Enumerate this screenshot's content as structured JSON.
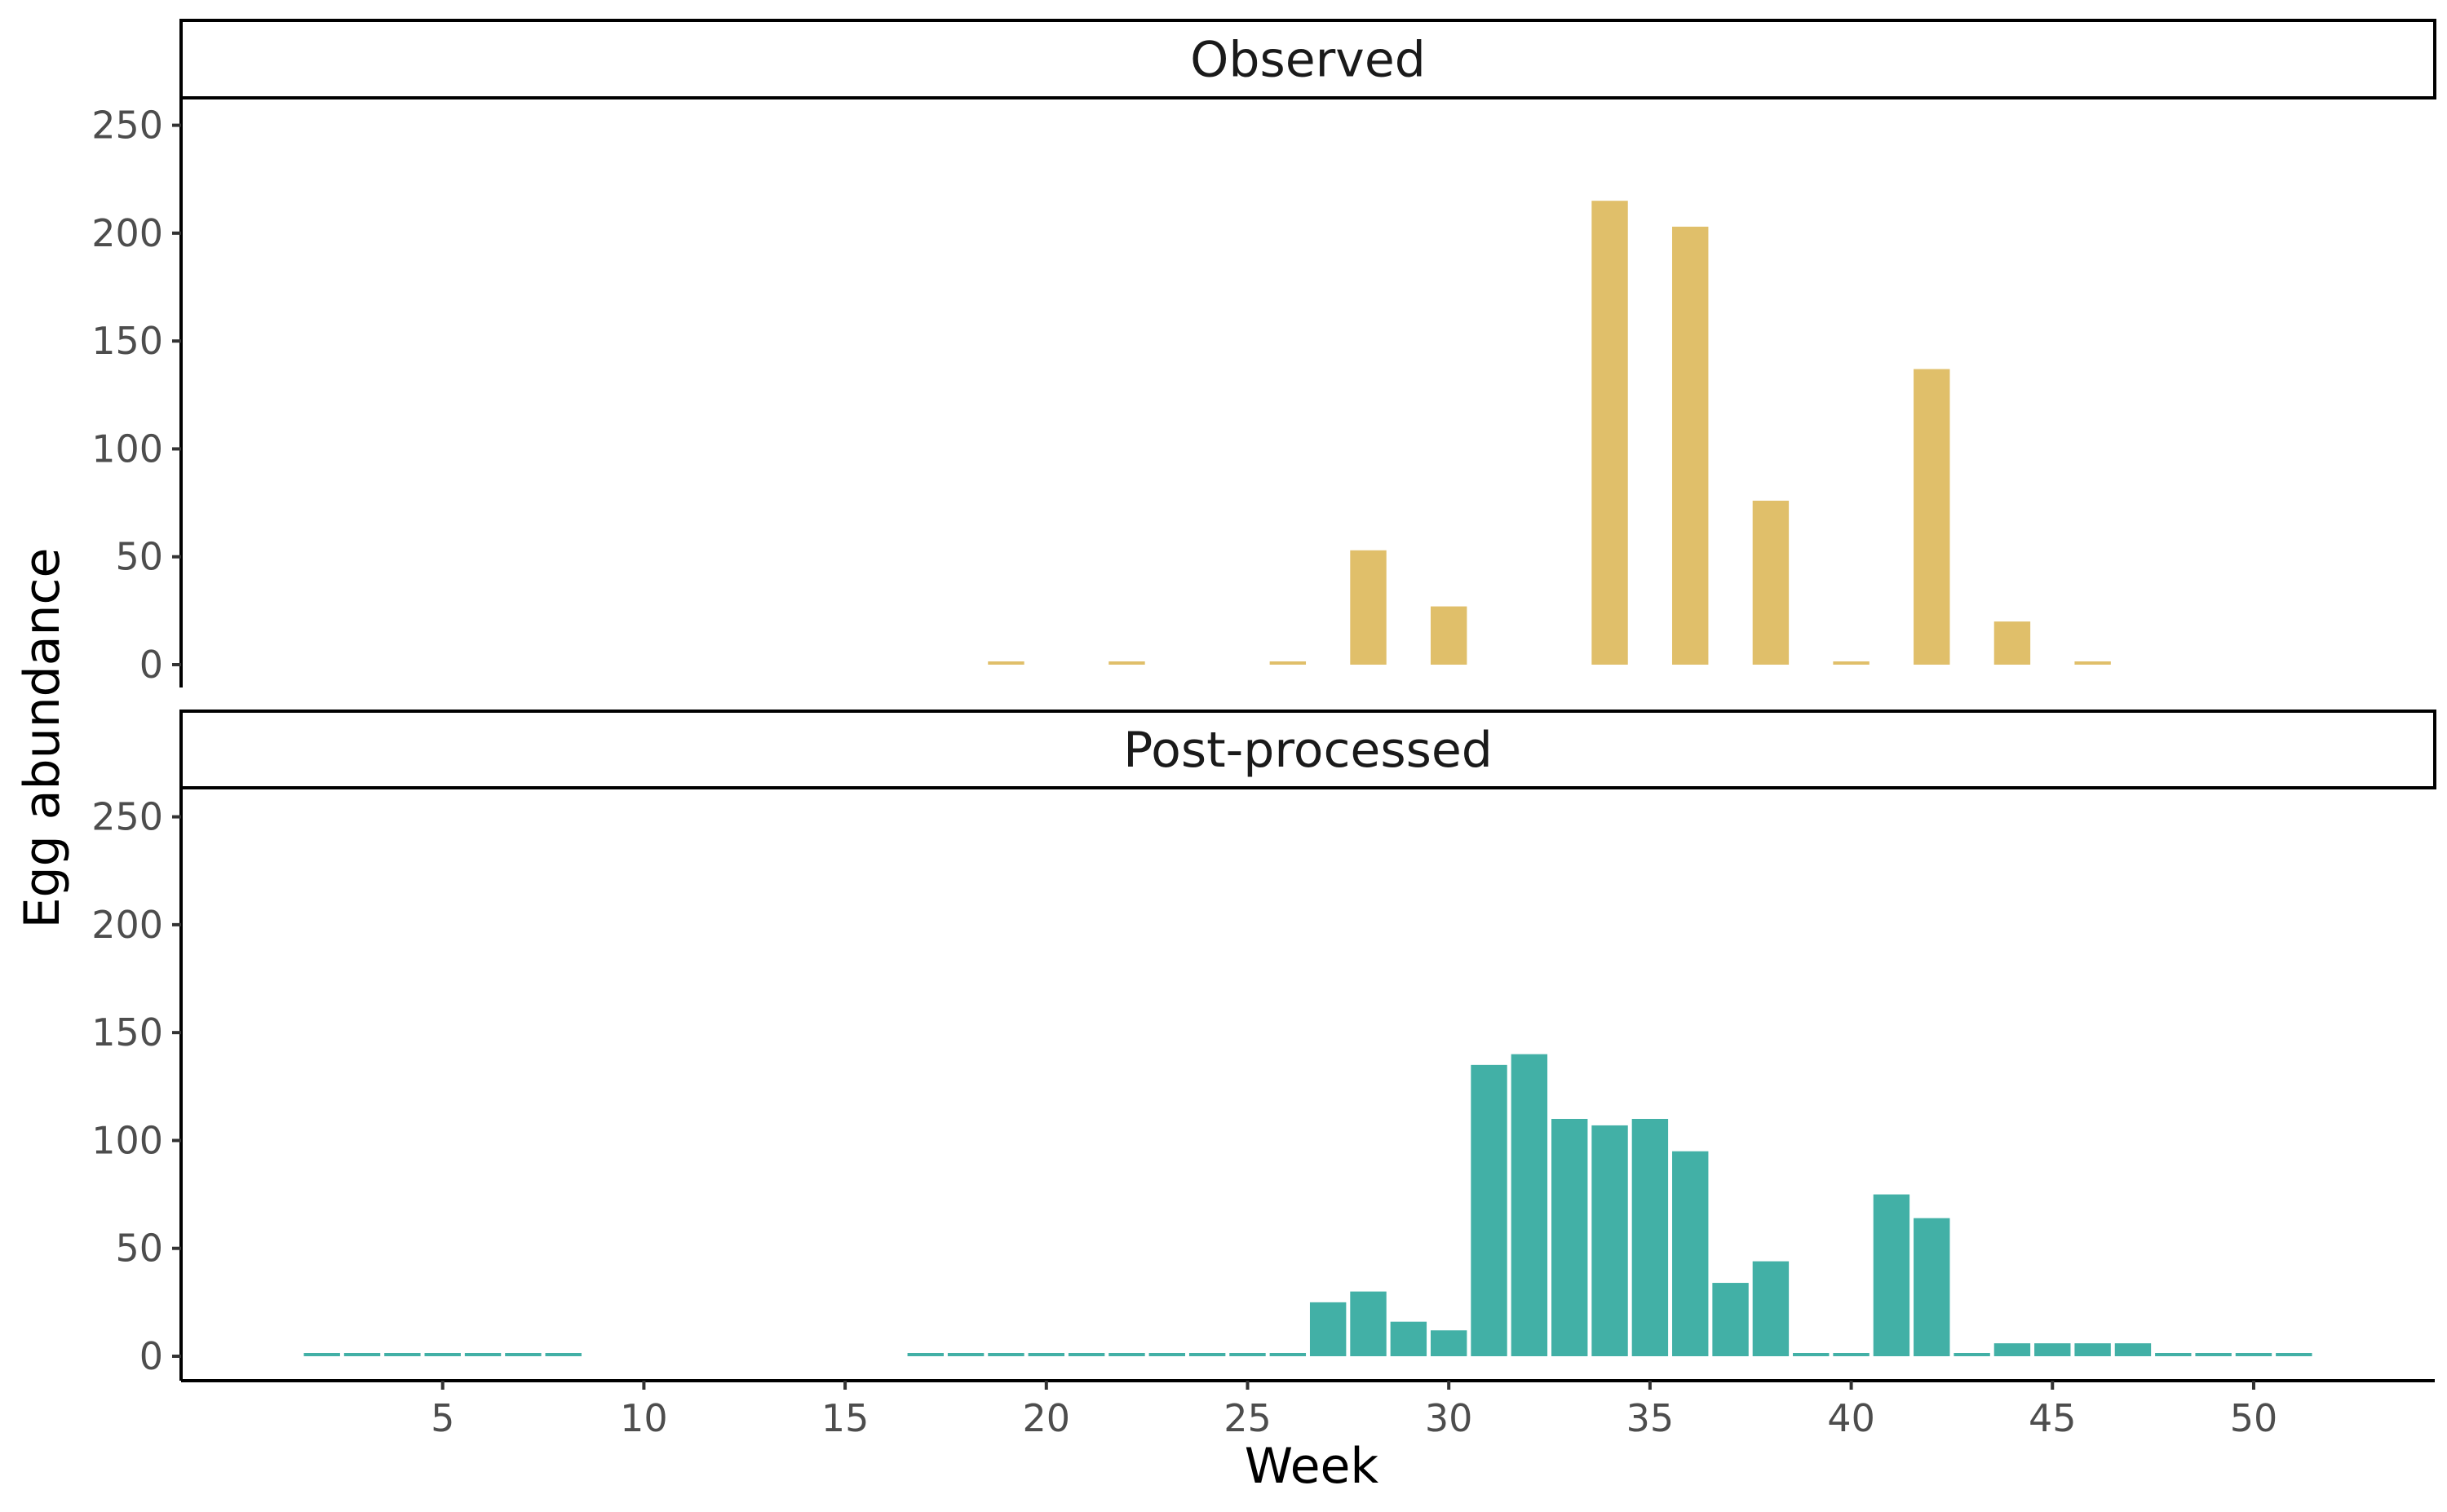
{
  "chart_data": [
    {
      "type": "bar",
      "title": "Observed",
      "color": "#E0BF6A",
      "xlabel": "Week",
      "ylabel": "Egg abundance",
      "ylim": [
        0,
        260
      ],
      "yticks": [
        0,
        50,
        100,
        150,
        200,
        250
      ],
      "xticks": [
        5,
        10,
        15,
        20,
        25,
        30,
        35,
        40,
        45,
        50
      ],
      "xlim": [
        -1.5,
        54.5
      ],
      "grid": false,
      "x": [
        19,
        22,
        26,
        28,
        30,
        34,
        36,
        38,
        40,
        42,
        44,
        46
      ],
      "values": [
        0,
        0,
        0,
        53,
        27,
        215,
        203,
        76,
        0,
        137,
        20,
        0
      ]
    },
    {
      "type": "bar",
      "title": "Post-processed",
      "color": "#42B0A6",
      "xlabel": "Week",
      "ylabel": "Egg abundance",
      "ylim": [
        0,
        260
      ],
      "yticks": [
        0,
        50,
        100,
        150,
        200,
        250
      ],
      "xticks": [
        5,
        10,
        15,
        20,
        25,
        30,
        35,
        40,
        45,
        50
      ],
      "xlim": [
        -1.5,
        54.5
      ],
      "grid": false,
      "x": [
        2,
        3,
        4,
        5,
        6,
        7,
        8,
        17,
        18,
        19,
        20,
        21,
        22,
        23,
        24,
        25,
        26,
        27,
        28,
        29,
        30,
        31,
        32,
        33,
        34,
        35,
        36,
        37,
        38,
        39,
        40,
        41,
        42,
        43,
        44,
        45,
        46,
        47,
        48,
        49,
        50,
        51
      ],
      "values": [
        0,
        0,
        0,
        0,
        0,
        0,
        0,
        0,
        0,
        0,
        0,
        0,
        0,
        0,
        0,
        0,
        0,
        25,
        30,
        16,
        12,
        135,
        140,
        110,
        107,
        110,
        95,
        34,
        44,
        0,
        0,
        75,
        64,
        0,
        6,
        6,
        6,
        6,
        0,
        0,
        0,
        0
      ]
    }
  ]
}
